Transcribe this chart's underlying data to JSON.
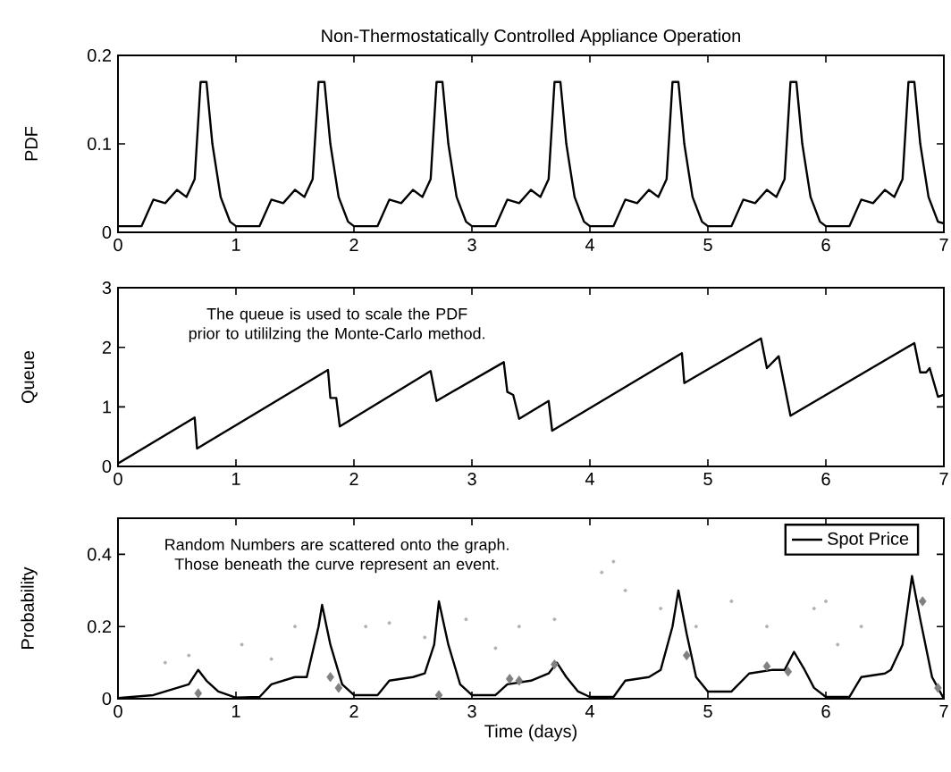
{
  "chart_data": [
    {
      "type": "line",
      "title": "Non-Thermostatically Controlled Appliance Operation",
      "ylabel": "PDF",
      "xlim": [
        0,
        7
      ],
      "ylim": [
        0,
        0.2
      ],
      "xticks": [
        0,
        1,
        2,
        3,
        4,
        5,
        6,
        7
      ],
      "yticks": [
        0,
        0.1,
        0.2
      ],
      "series": [
        {
          "color": "#000000",
          "x": [
            0,
            0.2,
            0.3,
            0.4,
            0.5,
            0.58,
            0.65,
            0.7,
            0.75,
            0.8,
            0.87,
            0.95,
            1,
            1.2,
            1.3,
            1.4,
            1.5,
            1.58,
            1.65,
            1.7,
            1.75,
            1.8,
            1.87,
            1.95,
            2,
            2.2,
            2.3,
            2.4,
            2.5,
            2.58,
            2.65,
            2.7,
            2.75,
            2.8,
            2.87,
            2.95,
            3,
            3.2,
            3.3,
            3.4,
            3.5,
            3.58,
            3.65,
            3.7,
            3.75,
            3.8,
            3.87,
            3.95,
            4,
            4.2,
            4.3,
            4.4,
            4.5,
            4.58,
            4.65,
            4.7,
            4.75,
            4.8,
            4.87,
            4.95,
            5,
            5.2,
            5.3,
            5.4,
            5.5,
            5.58,
            5.65,
            5.7,
            5.75,
            5.8,
            5.87,
            5.95,
            6,
            6.2,
            6.3,
            6.4,
            6.5,
            6.58,
            6.65,
            6.7,
            6.75,
            6.8,
            6.87,
            6.95,
            7
          ],
          "values": [
            0.007,
            0.007,
            0.037,
            0.033,
            0.048,
            0.04,
            0.06,
            0.17,
            0.17,
            0.1,
            0.04,
            0.012,
            0.007,
            0.007,
            0.037,
            0.033,
            0.048,
            0.04,
            0.06,
            0.17,
            0.17,
            0.1,
            0.04,
            0.012,
            0.007,
            0.007,
            0.037,
            0.033,
            0.048,
            0.04,
            0.06,
            0.17,
            0.17,
            0.1,
            0.04,
            0.012,
            0.007,
            0.007,
            0.037,
            0.033,
            0.048,
            0.04,
            0.06,
            0.17,
            0.17,
            0.1,
            0.04,
            0.012,
            0.007,
            0.007,
            0.037,
            0.033,
            0.048,
            0.04,
            0.06,
            0.17,
            0.17,
            0.1,
            0.04,
            0.012,
            0.007,
            0.007,
            0.037,
            0.033,
            0.048,
            0.04,
            0.06,
            0.17,
            0.17,
            0.1,
            0.04,
            0.012,
            0.007,
            0.007,
            0.037,
            0.033,
            0.048,
            0.04,
            0.06,
            0.17,
            0.17,
            0.1,
            0.04,
            0.012,
            0.01
          ]
        }
      ]
    },
    {
      "type": "line",
      "ylabel": "Queue",
      "annotations": [
        "The queue is used to scale the PDF prior to utililzing the Monte-Carlo method."
      ],
      "xlim": [
        0,
        7
      ],
      "ylim": [
        0,
        3
      ],
      "xticks": [
        0,
        1,
        2,
        3,
        4,
        5,
        6,
        7
      ],
      "yticks": [
        0,
        1,
        2,
        3
      ],
      "series": [
        {
          "color": "#000000",
          "x": [
            0,
            0.65,
            0.67,
            1.78,
            1.8,
            1.85,
            1.88,
            2.65,
            2.7,
            3.27,
            3.3,
            3.35,
            3.4,
            3.65,
            3.68,
            4.78,
            4.8,
            5.45,
            5.5,
            5.6,
            5.7,
            6.75,
            6.8,
            6.85,
            6.88,
            6.95,
            7
          ],
          "values": [
            0.05,
            0.82,
            0.3,
            1.62,
            1.15,
            1.15,
            0.67,
            1.6,
            1.1,
            1.75,
            1.25,
            1.2,
            0.8,
            1.1,
            0.6,
            1.9,
            1.4,
            2.15,
            1.65,
            1.85,
            0.85,
            2.07,
            1.58,
            1.58,
            1.65,
            1.17,
            1.2
          ]
        }
      ]
    },
    {
      "type": "line",
      "ylabel": "Probability",
      "xlabel": "Time (days)",
      "annotations": [
        "Random Numbers are scattered onto the graph. Those beneath the curve represent an event."
      ],
      "legend": "top right",
      "xlim": [
        0,
        7
      ],
      "ylim": [
        0,
        0.5
      ],
      "xticks": [
        0,
        1,
        2,
        3,
        4,
        5,
        6,
        7
      ],
      "yticks": [
        0,
        0.2,
        0.4
      ],
      "series": [
        {
          "name": "Spot Price",
          "color": "#000000",
          "x": [
            0,
            0.3,
            0.5,
            0.6,
            0.68,
            0.75,
            0.85,
            1,
            1.2,
            1.3,
            1.5,
            1.6,
            1.7,
            1.73,
            1.8,
            1.9,
            2,
            2.2,
            2.3,
            2.5,
            2.6,
            2.68,
            2.72,
            2.8,
            2.9,
            3,
            3.2,
            3.3,
            3.5,
            3.65,
            3.72,
            3.8,
            3.9,
            4,
            4.2,
            4.3,
            4.5,
            4.6,
            4.7,
            4.75,
            4.82,
            4.9,
            5,
            5.2,
            5.35,
            5.55,
            5.65,
            5.73,
            5.82,
            5.9,
            6,
            6.2,
            6.3,
            6.5,
            6.55,
            6.65,
            6.73,
            6.8,
            6.9,
            7
          ],
          "values": [
            0.002,
            0.01,
            0.03,
            0.04,
            0.08,
            0.05,
            0.02,
            0.003,
            0.005,
            0.04,
            0.06,
            0.06,
            0.2,
            0.26,
            0.15,
            0.04,
            0.01,
            0.01,
            0.05,
            0.06,
            0.07,
            0.15,
            0.27,
            0.15,
            0.04,
            0.01,
            0.01,
            0.04,
            0.05,
            0.07,
            0.1,
            0.06,
            0.02,
            0.005,
            0.005,
            0.05,
            0.06,
            0.08,
            0.2,
            0.3,
            0.18,
            0.06,
            0.02,
            0.02,
            0.07,
            0.08,
            0.08,
            0.13,
            0.08,
            0.03,
            0.005,
            0.005,
            0.06,
            0.07,
            0.08,
            0.15,
            0.34,
            0.22,
            0.06,
            0
          ]
        },
        {
          "type": "scatter",
          "marker": "diamond",
          "color": "#808080",
          "x": [
            0.68,
            1.8,
            1.87,
            2.72,
            3.32,
            3.4,
            3.7,
            4.82,
            5.5,
            5.68,
            6.82,
            6.95
          ],
          "values": [
            0.015,
            0.06,
            0.03,
            0.01,
            0.055,
            0.05,
            0.095,
            0.12,
            0.09,
            0.075,
            0.27,
            0.03
          ]
        },
        {
          "type": "scatter",
          "marker": "circle",
          "color": "#b0b0b0",
          "x": [
            0.4,
            0.6,
            1.05,
            1.5,
            2.1,
            2.3,
            2.95,
            3.2,
            3.4,
            3.7,
            4.1,
            4.2,
            4.3,
            4.6,
            4.9,
            5.2,
            5.5,
            5.9,
            6.0,
            6.1,
            6.3,
            1.3,
            2.6
          ],
          "values": [
            0.1,
            0.12,
            0.15,
            0.2,
            0.2,
            0.21,
            0.22,
            0.14,
            0.2,
            0.22,
            0.35,
            0.38,
            0.3,
            0.25,
            0.2,
            0.27,
            0.2,
            0.25,
            0.27,
            0.15,
            0.2,
            0.11,
            0.17
          ]
        }
      ]
    }
  ]
}
